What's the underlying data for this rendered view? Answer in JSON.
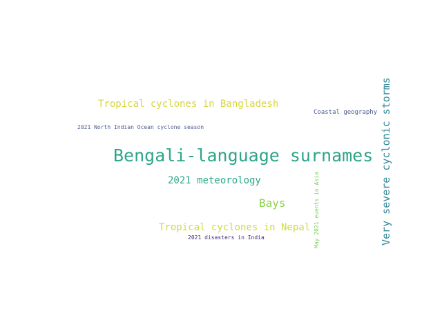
{
  "wordcloud": {
    "words": [
      {
        "key": "bengali",
        "text": "Bengali-language surnames",
        "color": "#2ea58a"
      },
      {
        "key": "bangladesh",
        "text": "Tropical cyclones in Bangladesh",
        "color": "#d6d63a"
      },
      {
        "key": "storms",
        "text": "Very severe cyclonic storms",
        "color": "#31889a"
      },
      {
        "key": "meteorology",
        "text": "2021 meteorology",
        "color": "#2aa888"
      },
      {
        "key": "bays",
        "text": "Bays",
        "color": "#8bd14a"
      },
      {
        "key": "nepal",
        "text": "Tropical cyclones in Nepal",
        "color": "#cfdc3a"
      },
      {
        "key": "coastal",
        "text": "Coastal geography",
        "color": "#4a5a92"
      },
      {
        "key": "season",
        "text": "2021 North Indian Ocean cyclone season",
        "color": "#4e5b92"
      },
      {
        "key": "disasters",
        "text": "2021 disasters in India",
        "color": "#3f2a7a"
      },
      {
        "key": "asia",
        "text": "May 2021 events in Asia",
        "color": "#7ccf58"
      }
    ]
  }
}
